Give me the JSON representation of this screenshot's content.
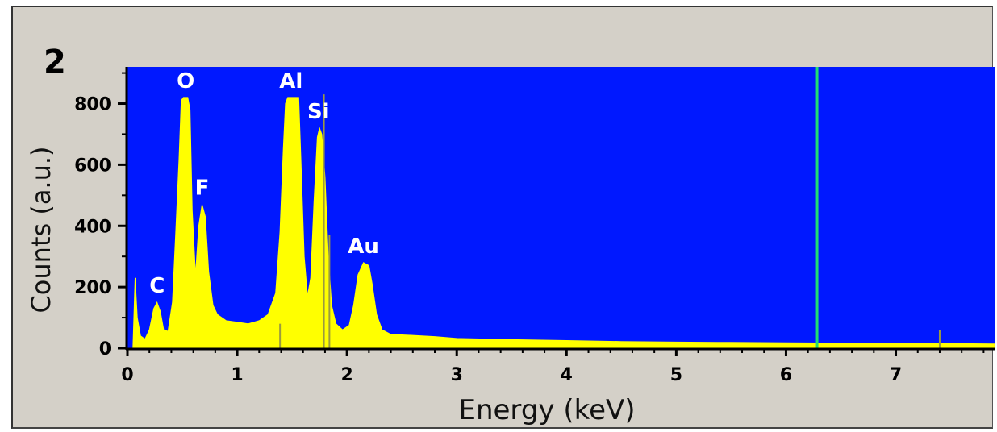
{
  "chart_data": {
    "type": "area",
    "panel_label": "2",
    "xlabel": "Energy (keV)",
    "ylabel": "Counts (a.u.)",
    "xlim": [
      0,
      7.9
    ],
    "ylim": [
      0,
      920
    ],
    "x_ticks": [
      "0",
      "1",
      "2",
      "3",
      "4",
      "5",
      "6",
      "7"
    ],
    "y_ticks": [
      "0",
      "200",
      "400",
      "600",
      "800"
    ],
    "marker_keV": 6.28,
    "colors": {
      "background": "#0018ff",
      "spectrum": "#ffff00",
      "marker": "#20e070",
      "peak_label": "#ffffff"
    },
    "peaks": [
      {
        "label": "C",
        "energy": 0.27,
        "counts": 150
      },
      {
        "label": "O",
        "energy": 0.53,
        "counts": 820
      },
      {
        "label": "F",
        "energy": 0.68,
        "counts": 470
      },
      {
        "label": "Al",
        "energy": 1.49,
        "counts": 820
      },
      {
        "label": "Si",
        "energy": 1.74,
        "counts": 720
      },
      {
        "label": "Au",
        "energy": 2.15,
        "counts": 280
      }
    ],
    "spectrum": [
      [
        0.05,
        0
      ],
      [
        0.07,
        230
      ],
      [
        0.09,
        100
      ],
      [
        0.12,
        40
      ],
      [
        0.16,
        30
      ],
      [
        0.2,
        60
      ],
      [
        0.24,
        130
      ],
      [
        0.27,
        150
      ],
      [
        0.3,
        120
      ],
      [
        0.33,
        60
      ],
      [
        0.37,
        55
      ],
      [
        0.41,
        150
      ],
      [
        0.44,
        380
      ],
      [
        0.47,
        620
      ],
      [
        0.49,
        810
      ],
      [
        0.51,
        820
      ],
      [
        0.55,
        820
      ],
      [
        0.57,
        780
      ],
      [
        0.59,
        450
      ],
      [
        0.62,
        240
      ],
      [
        0.65,
        400
      ],
      [
        0.68,
        470
      ],
      [
        0.71,
        430
      ],
      [
        0.74,
        250
      ],
      [
        0.78,
        140
      ],
      [
        0.82,
        110
      ],
      [
        0.9,
        90
      ],
      [
        1.0,
        85
      ],
      [
        1.1,
        80
      ],
      [
        1.2,
        90
      ],
      [
        1.28,
        110
      ],
      [
        1.35,
        180
      ],
      [
        1.39,
        380
      ],
      [
        1.42,
        650
      ],
      [
        1.44,
        800
      ],
      [
        1.46,
        820
      ],
      [
        1.56,
        820
      ],
      [
        1.58,
        620
      ],
      [
        1.61,
        300
      ],
      [
        1.64,
        170
      ],
      [
        1.67,
        230
      ],
      [
        1.7,
        480
      ],
      [
        1.73,
        690
      ],
      [
        1.75,
        720
      ],
      [
        1.77,
        700
      ],
      [
        1.8,
        560
      ],
      [
        1.83,
        300
      ],
      [
        1.86,
        140
      ],
      [
        1.9,
        80
      ],
      [
        1.96,
        60
      ],
      [
        2.02,
        75
      ],
      [
        2.06,
        140
      ],
      [
        2.1,
        240
      ],
      [
        2.15,
        280
      ],
      [
        2.2,
        270
      ],
      [
        2.23,
        210
      ],
      [
        2.27,
        110
      ],
      [
        2.32,
        60
      ],
      [
        2.4,
        45
      ],
      [
        2.6,
        42
      ],
      [
        2.8,
        38
      ],
      [
        3.0,
        32
      ],
      [
        3.5,
        28
      ],
      [
        4.0,
        25
      ],
      [
        4.5,
        22
      ],
      [
        5.0,
        20
      ],
      [
        5.5,
        19
      ],
      [
        6.0,
        18
      ],
      [
        6.5,
        17
      ],
      [
        7.0,
        16
      ],
      [
        7.5,
        15
      ],
      [
        7.9,
        14
      ]
    ],
    "lines": [
      {
        "energy": 1.39,
        "counts": 80
      },
      {
        "energy": 1.79,
        "counts": 830
      },
      {
        "energy": 1.84,
        "counts": 370
      },
      {
        "energy": 7.4,
        "counts": 60
      }
    ]
  }
}
